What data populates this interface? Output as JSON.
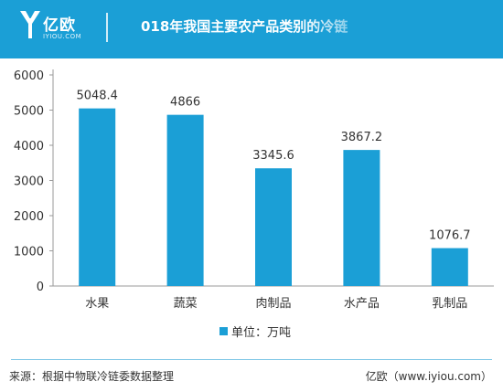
{
  "header": {
    "logo_text": "亿欧",
    "logo_url": "IYIOU.COM",
    "title": "018年我国主要农产品类别的冷链"
  },
  "legend": {
    "label": "单位：万吨"
  },
  "footer": {
    "source": "来源：根据中物联冷链委数据整理",
    "brand": "亿欧（www.iyiou.com）"
  },
  "colors": {
    "header_bg": "#1b9fd6",
    "bar": "#1b9fd6"
  },
  "chart_data": {
    "type": "bar",
    "categories": [
      "水果",
      "蔬菜",
      "肉制品",
      "水产品",
      "乳制品"
    ],
    "values": [
      5048.4,
      4866,
      3345.6,
      3867.2,
      1076.7
    ],
    "data_labels": [
      "5048.4",
      "4866",
      "3345.6",
      "3867.2",
      "1076.7"
    ],
    "yticks": [
      0,
      1000,
      2000,
      3000,
      4000,
      5000,
      6000
    ],
    "ylim": [
      0,
      6000
    ],
    "grid": false,
    "legend_position": "bottom-center",
    "unit": "单位：万吨"
  }
}
